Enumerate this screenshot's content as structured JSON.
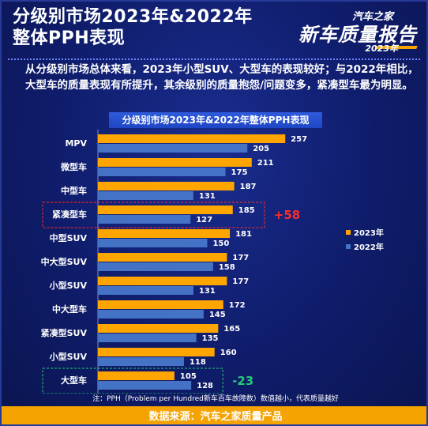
{
  "header": {
    "title": "分级别市场2023年&2022年\n整体PPH表现"
  },
  "brand": {
    "top": "汽车之家",
    "main": "新车质量报告",
    "year": "2023年"
  },
  "summary": "从分级别市场总体来看，2023年小型SUV、大型车的表现较好；与2022年相比，大型车的质量表现有所提升，其余级别的质量抱怨/问题变多，紧凑型车最为明显。",
  "colors": {
    "y2023": "#ffa500",
    "y2022": "#4472c4",
    "up": "#ff2b2b",
    "down": "#29c97a"
  },
  "chart_data": {
    "type": "bar",
    "orientation": "horizontal",
    "title": "分级别市场2023年&2022年整体PPH表现",
    "categories": [
      "MPV",
      "微型车",
      "中型车",
      "紧凑型车",
      "中型SUV",
      "中大型SUV",
      "小型SUV",
      "中大型车",
      "紧凑型SUV",
      "小型SUV",
      "大型车"
    ],
    "series": [
      {
        "name": "2023年",
        "values": [
          257,
          211,
          187,
          185,
          181,
          177,
          177,
          172,
          165,
          160,
          105
        ]
      },
      {
        "name": "2022年",
        "values": [
          205,
          175,
          131,
          127,
          150,
          158,
          131,
          145,
          135,
          118,
          128
        ]
      }
    ],
    "xlim": [
      0,
      260
    ],
    "grid": false,
    "legend": "right",
    "annotations": [
      {
        "category_index": 3,
        "text": "+58",
        "style": "up"
      },
      {
        "category_index": 10,
        "text": "-23",
        "style": "down"
      }
    ]
  },
  "footnote": "注：PPH（Problem per Hundred新车百车故障数）数值越小，代表质量越好",
  "footer": "数据来源：汽车之家质量产品"
}
